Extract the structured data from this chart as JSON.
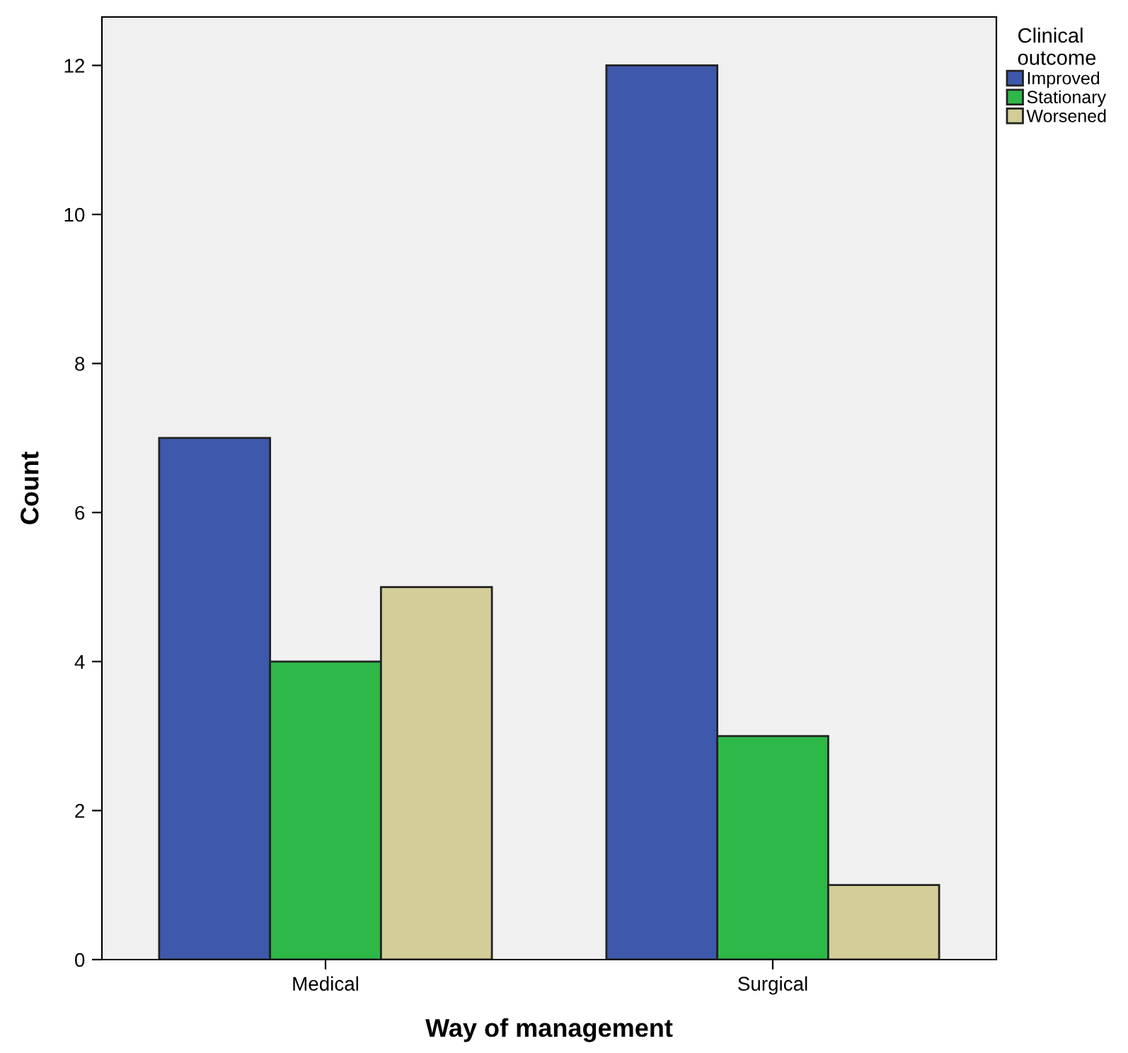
{
  "chart_data": {
    "type": "bar",
    "xlabel": "Way of management",
    "ylabel": "Count",
    "legend_title": "Clinical\noutcome",
    "categories": [
      "Medical",
      "Surgical"
    ],
    "series": [
      {
        "name": "Improved",
        "color": "#3e58ac",
        "values": [
          7,
          12
        ]
      },
      {
        "name": "Stationary",
        "color": "#2eb848",
        "values": [
          4,
          3
        ]
      },
      {
        "name": "Worsened",
        "color": "#d3ce97",
        "values": [
          5,
          1
        ]
      }
    ],
    "ylim": [
      0,
      12.65
    ],
    "yticks": [
      0,
      2,
      4,
      6,
      8,
      10,
      12
    ],
    "grid": false,
    "legend": "top right"
  }
}
